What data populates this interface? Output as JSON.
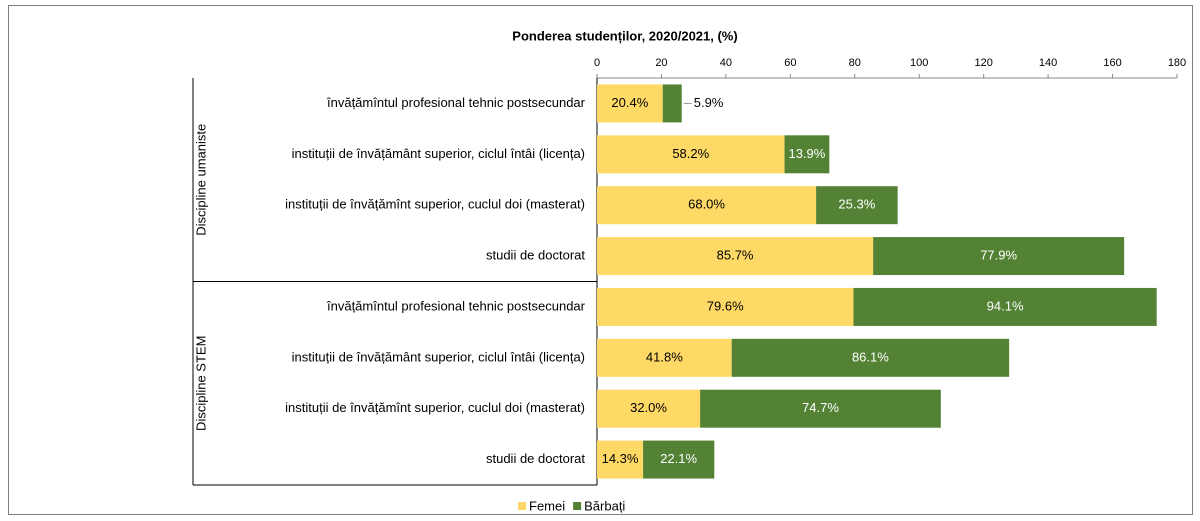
{
  "chart_data": {
    "type": "stacked-barh",
    "title": "Ponderea studenților, 2020/2021, (%)",
    "groups": [
      "Discipline umaniste",
      "Discipline STEM"
    ],
    "categories": [
      "învățămîntul profesional tehnic postsecundar",
      "instituții de învățământ superior, ciclul întâi (licența)",
      "instituții de învățămînt superior, cuclul doi (masterat)",
      "studii de doctorat",
      "învățămîntul profesional tehnic postsecundar",
      "instituții de învățământ superior, ciclul întâi (licența)",
      "instituții de învățămînt superior, cuclul doi (masterat)",
      "studii de doctorat"
    ],
    "series": [
      {
        "name": "Femei",
        "color": "#ffd966",
        "values": [
          20.4,
          58.2,
          68.0,
          85.7,
          79.6,
          41.8,
          32.0,
          14.3
        ],
        "value_labels": [
          "20.4%",
          "58.2%",
          "68.0%",
          "85.7%",
          "79.6%",
          "41.8%",
          "32.0%",
          "14.3%"
        ]
      },
      {
        "name": "Bărbați",
        "color": "#548235",
        "values": [
          5.9,
          13.9,
          25.3,
          77.9,
          94.1,
          86.1,
          74.7,
          22.1
        ],
        "value_labels": [
          "5.9%",
          "13.9%",
          "25.3%",
          "77.9%",
          "94.1%",
          "86.1%",
          "74.7%",
          "22.1%"
        ]
      }
    ],
    "xlim": [
      0,
      180
    ],
    "xticks": [
      0,
      20,
      40,
      60,
      80,
      100,
      120,
      140,
      160,
      180
    ],
    "legend": "bottom"
  }
}
